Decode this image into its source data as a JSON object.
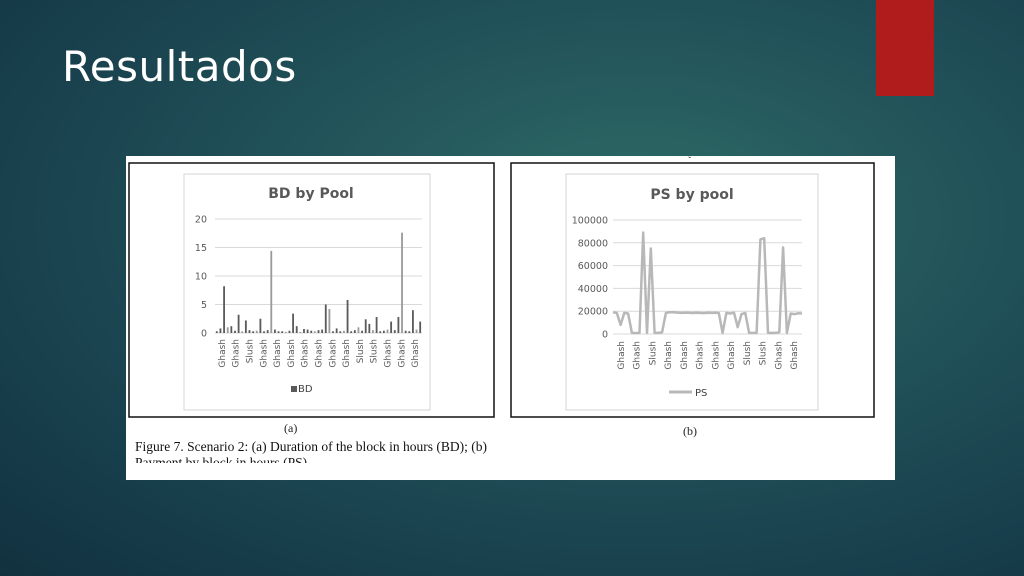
{
  "slide": {
    "title": "Resultados"
  },
  "figure": {
    "caption": "Figure 7. Scenario 2: (a) Duration of the block in hours (BD); (b) Payment by block in hours (PS)",
    "label_a": "(a)",
    "label_b": "(b)",
    "stray_mark": "ˇ"
  },
  "colors": {
    "accent": "#b01c1c",
    "bar": "#5a5a5a",
    "line": "#b8b8b8"
  },
  "chart_data": [
    {
      "type": "bar",
      "title": "BD by Pool",
      "xlabel": "",
      "ylabel": "",
      "ylim": [
        0,
        20
      ],
      "yticks": [
        "0",
        "5",
        "10",
        "15",
        "20"
      ],
      "tick_labels": [
        "Ghash",
        "Ghash",
        "Slush",
        "Ghash",
        "Ghash",
        "Ghash",
        "Ghash",
        "Ghash",
        "Ghash",
        "Ghash",
        "Slush",
        "Slush",
        "Ghash",
        "Ghash",
        "Ghash"
      ],
      "legend": [
        "BD"
      ],
      "legend_position": "bottom",
      "grid": true,
      "series": [
        {
          "name": "BD",
          "values": [
            0.3,
            0.8,
            8.2,
            1.0,
            1.2,
            0.4,
            3.2,
            0.3,
            2.2,
            0.5,
            0.3,
            0.4,
            2.5,
            0.3,
            0.5,
            14.4,
            0.6,
            0.3,
            0.3,
            0.2,
            0.4,
            3.4,
            1.2,
            0.2,
            0.7,
            0.6,
            0.4,
            0.3,
            0.5,
            0.6,
            5.0,
            4.2,
            0.3,
            0.8,
            0.3,
            0.4,
            5.8,
            0.3,
            0.5,
            1.0,
            0.4,
            2.4,
            1.6,
            0.5,
            2.8,
            0.3,
            0.4,
            0.6,
            2.0,
            0.5,
            2.8,
            17.6,
            0.4,
            0.3,
            4.0,
            0.6,
            2.0
          ]
        }
      ]
    },
    {
      "type": "line",
      "title": "PS by pool",
      "xlabel": "",
      "ylabel": "",
      "ylim": [
        0,
        100000
      ],
      "yticks": [
        "0",
        "20000",
        "40000",
        "60000",
        "80000",
        "100000"
      ],
      "tick_labels": [
        "Ghash",
        "Ghash",
        "Slush",
        "Ghash",
        "Ghash",
        "Ghash",
        "Ghash",
        "Ghash",
        "Slush",
        "Slush",
        "Ghash",
        "Ghash"
      ],
      "legend": [
        "PS"
      ],
      "legend_position": "bottom",
      "grid": true,
      "series": [
        {
          "name": "PS",
          "values": [
            19000,
            18500,
            8000,
            18500,
            18000,
            1000,
            800,
            1000,
            89000,
            1000,
            75000,
            1000,
            1000,
            1500,
            18500,
            19000,
            19000,
            18800,
            18500,
            18700,
            18600,
            18400,
            18600,
            18500,
            18300,
            18700,
            18500,
            18600,
            18400,
            1000,
            18500,
            18000,
            18700,
            6000,
            17500,
            18400,
            1000,
            1000,
            1000,
            83000,
            84000,
            1000,
            1000,
            1000,
            1500,
            76000,
            1000,
            18000,
            17500,
            18200,
            18000
          ]
        }
      ]
    }
  ]
}
